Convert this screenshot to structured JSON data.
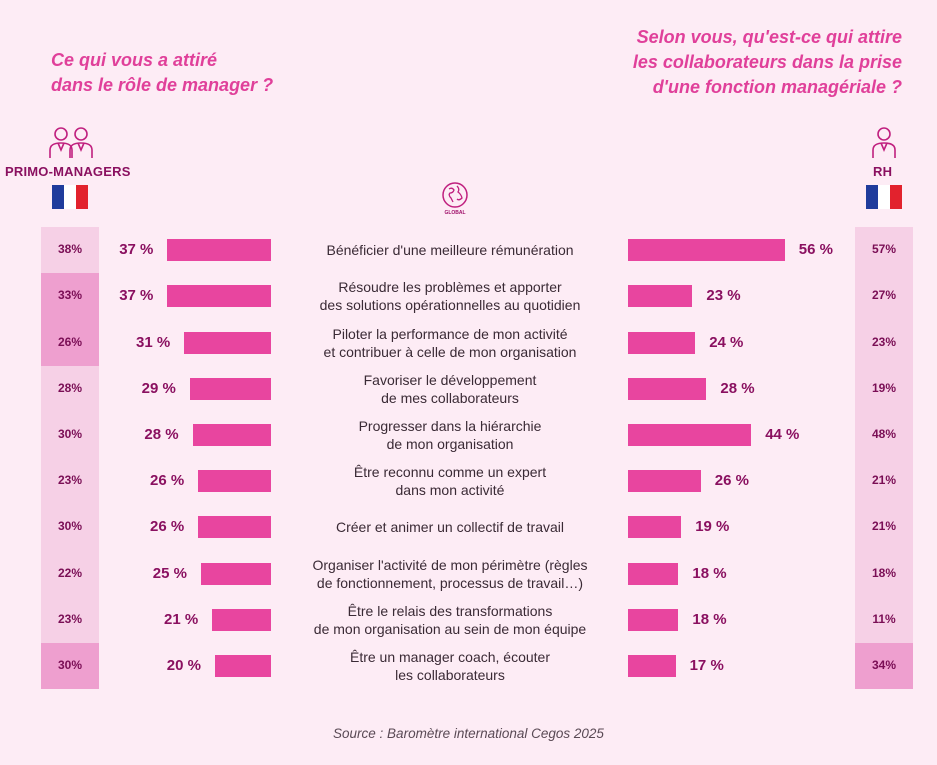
{
  "colors": {
    "accent": "#e8459f",
    "title": "#e0409a",
    "dark": "#8a1060"
  },
  "left_question": [
    "Ce qui vous a attiré",
    "dans le rôle de manager ?"
  ],
  "right_question": [
    "Selon vous, qu'est-ce qui attire",
    "les collaborateurs dans la prise",
    "d'une fonction managériale ?"
  ],
  "left_group": "PRIMO-MANAGERS",
  "right_group": "RH",
  "center_icon_label": "GLOBAL",
  "source": "Source : Baromètre international Cegos 2025",
  "chart_data": {
    "type": "bar",
    "categories": [
      [
        "Bénéficier d'une meilleure rémunération"
      ],
      [
        "Résoudre les problèmes et apporter",
        "des solutions opérationnelles au quotidien"
      ],
      [
        "Piloter la performance de mon activité",
        "et contribuer à celle de mon organisation"
      ],
      [
        "Favoriser le développement",
        "de mes collaborateurs"
      ],
      [
        "Progresser dans la hiérarchie",
        "de mon organisation"
      ],
      [
        "Être reconnu comme un expert",
        "dans mon activité"
      ],
      [
        "Créer et animer un collectif de travail"
      ],
      [
        "Organiser l'activité de mon périmètre (règles",
        "de fonctionnement, processus de travail…)"
      ],
      [
        "Être le relais des transformations",
        "de mon organisation au sein de mon équipe"
      ],
      [
        "Être un manager coach, écouter",
        "les collaborateurs"
      ]
    ],
    "series": [
      {
        "name": "PRIMO-MANAGERS",
        "values": [
          37,
          37,
          31,
          29,
          28,
          26,
          26,
          25,
          21,
          20
        ],
        "labels": [
          "37 %",
          "37 %",
          "31 %",
          "29 %",
          "28 %",
          "26 %",
          "26 %",
          "25 %",
          "21 %",
          "20 %"
        ]
      },
      {
        "name": "RH",
        "values": [
          56,
          23,
          24,
          28,
          44,
          26,
          19,
          18,
          18,
          17
        ],
        "labels": [
          "56 %",
          "23 %",
          "24 %",
          "28 %",
          "44 %",
          "26 %",
          "19 %",
          "18 %",
          "18 %",
          "17 %"
        ]
      }
    ],
    "primo_side_column": [
      "38%",
      "33%",
      "26%",
      "28%",
      "30%",
      "23%",
      "30%",
      "22%",
      "23%",
      "30%"
    ],
    "primo_side_highlight": [
      false,
      true,
      true,
      false,
      false,
      false,
      false,
      false,
      false,
      true
    ],
    "rh_side_column": [
      "57%",
      "27%",
      "23%",
      "19%",
      "48%",
      "21%",
      "21%",
      "18%",
      "11%",
      "34%"
    ],
    "rh_side_highlight": [
      false,
      false,
      false,
      false,
      false,
      false,
      false,
      false,
      false,
      true
    ]
  }
}
